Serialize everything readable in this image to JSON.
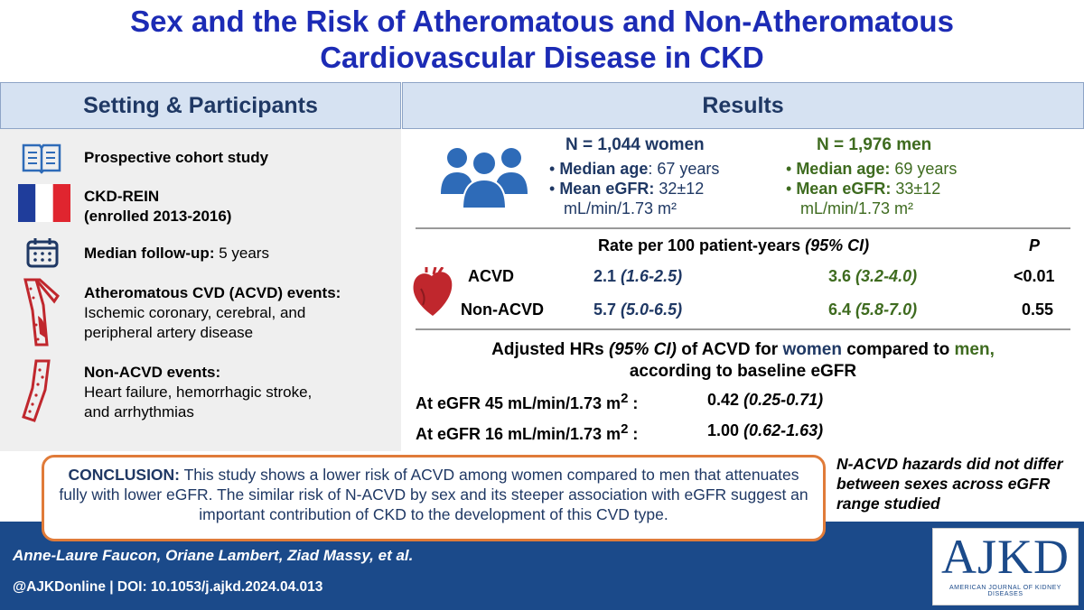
{
  "title": {
    "line1": "Sex and the Risk of Atheromatous and Non-Atheromatous",
    "line2": "Cardiovascular Disease in CKD"
  },
  "setting": {
    "header": "Setting & Participants",
    "items": {
      "cohort": "Prospective cohort study",
      "study_name": "CKD-REIN",
      "enrolled": "(enrolled 2013-2016)",
      "followup_label": "Median follow-up:",
      "followup_value": "5 years",
      "acvd_title": "Atheromatous CVD (ACVD) events:",
      "acvd_desc1": "Ischemic coronary, cerebral, and",
      "acvd_desc2": "peripheral artery disease",
      "nacvd_title": "Non-ACVD events:",
      "nacvd_desc1": "Heart failure, hemorrhagic stroke,",
      "nacvd_desc2": "and arrhythmias"
    }
  },
  "results": {
    "header": "Results",
    "women": {
      "n": "N = 1,044 women",
      "age_label": "Median age",
      "age_value": ": 67 years",
      "egfr_label": "Mean eGFR:",
      "egfr_value": "32±12",
      "egfr_unit": "mL/min/1.73 m²"
    },
    "men": {
      "n": "N = 1,976 men",
      "age_label": "Median age:",
      "age_value": "69 years",
      "egfr_label": "Mean eGFR:",
      "egfr_value": "33±12",
      "egfr_unit": "mL/min/1.73 m²"
    },
    "rate_table": {
      "header_main": "Rate per 100 patient-years",
      "header_ci": "(95% CI)",
      "header_p": "P",
      "rows": [
        {
          "label": "ACVD",
          "women": "2.1",
          "women_ci": "(1.6-2.5)",
          "men": "3.6",
          "men_ci": "(3.2-4.0)",
          "p": "<0.01"
        },
        {
          "label": "Non-ACVD",
          "women": "5.7",
          "women_ci": "(5.0-6.5)",
          "men": "6.4",
          "men_ci": "(5.8-7.0)",
          "p": "0.55"
        }
      ]
    },
    "hr": {
      "t1": "Adjusted HRs",
      "t2": "(95% CI)",
      "t3": "of ACVD for",
      "t4": "women",
      "t5": "compared to",
      "t6": "men,",
      "t7": "according to baseline eGFR",
      "rows": [
        {
          "label": "At eGFR 45 mL/min/1.73 m",
          "sup": "2",
          "colon": " :",
          "value": "0.42",
          "ci": "(0.25-0.71)"
        },
        {
          "label": "At eGFR 16 mL/min/1.73 m",
          "sup": "2",
          "colon": " :",
          "value": "1.00",
          "ci": "(0.62-1.63)"
        }
      ]
    }
  },
  "conclusion": {
    "label": "CONCLUSION:",
    "text": "This study shows a lower risk of ACVD among women compared to men that attenuates fully with lower eGFR. The similar risk of N-ACVD by sex and its steeper association with eGFR suggest an important contribution of CKD to the development of this CVD type."
  },
  "side_note": "N-ACVD hazards did not differ between sexes across eGFR range studied",
  "footer": {
    "authors": "Anne-Laure Faucon, Oriane Lambert, Ziad Massy, et al.",
    "doi": "@AJKDonline | DOI: 10.1053/j.ajkd.2024.04.013",
    "logo": "AJKD",
    "logo_sub": "AMERICAN JOURNAL OF KIDNEY DISEASES"
  },
  "colors": {
    "title": "#1c2bb5",
    "header_bg": "#d6e2f2",
    "women": "#1f3864",
    "men": "#3e6b1f",
    "footer_bg": "#1b4a8a",
    "conclusion_border": "#e07b39",
    "icon_red": "#c0272d",
    "icon_blue": "#2e6bb8"
  },
  "icons": [
    "book-icon",
    "france-flag-icon",
    "calendar-icon",
    "artery-plaque-icon",
    "vessel-icon",
    "people-icon",
    "heart-icon"
  ]
}
